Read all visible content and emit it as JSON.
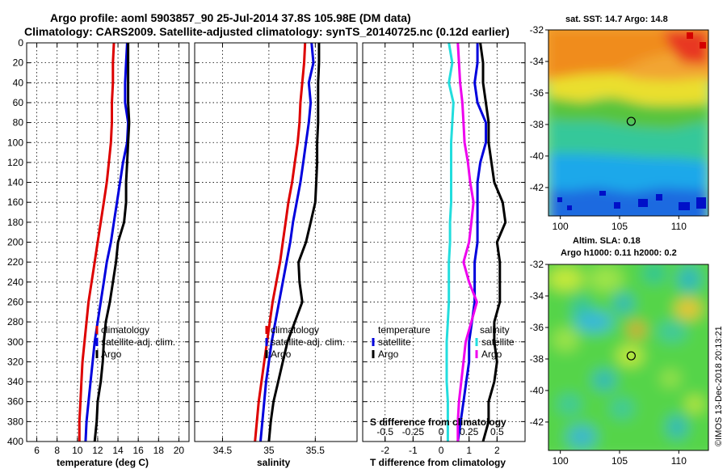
{
  "header": {
    "line1": "Argo profile: aoml 5903857_90 25-Jul-2014 37.8S 105.98E (DM data)",
    "line2": "Climatology: CARS2009. Satellite-adjusted climatology: synTS_20140725.nc (0.12d earlier)"
  },
  "chart_data": [
    {
      "type": "line",
      "name": "temperature",
      "xlabel": "temperature (deg C)",
      "xlim": [
        5,
        21
      ],
      "xticks": [
        6,
        8,
        10,
        12,
        14,
        16,
        18,
        20
      ],
      "xtick_labels": [
        "6",
        "8",
        "10",
        "12",
        "14",
        "16",
        "18",
        "20"
      ],
      "ylim": [
        0,
        400
      ],
      "yticks": [
        0,
        20,
        40,
        60,
        80,
        100,
        120,
        140,
        160,
        180,
        200,
        220,
        240,
        260,
        280,
        300,
        320,
        340,
        360,
        380,
        400
      ],
      "ytick_labels": [
        "0",
        "20",
        "40",
        "60",
        "80",
        "100",
        "120",
        "140",
        "160",
        "180",
        "200",
        "220",
        "240",
        "260",
        "280",
        "300",
        "320",
        "340",
        "360",
        "380",
        "400"
      ],
      "legend": [
        "climatology",
        "satellite-adj. clim.",
        "Argo"
      ],
      "series": [
        {
          "name": "climatology",
          "color": "#dd0000",
          "depth": [
            0,
            20,
            40,
            60,
            80,
            100,
            120,
            140,
            160,
            180,
            200,
            220,
            240,
            260,
            280,
            300,
            320,
            340,
            360,
            380,
            400
          ],
          "values": [
            13.6,
            13.5,
            13.5,
            13.4,
            13.4,
            13.3,
            13.1,
            12.9,
            12.6,
            12.3,
            12.0,
            11.7,
            11.4,
            11.1,
            10.9,
            10.7,
            10.5,
            10.4,
            10.3,
            10.2,
            10.2
          ]
        },
        {
          "name": "satellite-adj. clim.",
          "color": "#0000dd",
          "depth": [
            0,
            20,
            40,
            60,
            80,
            100,
            120,
            140,
            160,
            180,
            200,
            220,
            240,
            260,
            280,
            300,
            320,
            340,
            360,
            380,
            400
          ],
          "values": [
            14.9,
            14.8,
            14.7,
            14.7,
            15.0,
            14.9,
            14.5,
            14.2,
            13.9,
            13.6,
            13.3,
            12.9,
            12.6,
            12.3,
            12.0,
            11.7,
            11.5,
            11.3,
            11.1,
            10.9,
            10.8
          ]
        },
        {
          "name": "Argo",
          "color": "#000000",
          "depth": [
            0,
            20,
            40,
            60,
            80,
            100,
            120,
            140,
            160,
            180,
            200,
            220,
            240,
            260,
            280,
            300,
            320,
            340,
            360,
            380,
            400
          ],
          "values": [
            15.0,
            15.0,
            15.0,
            15.0,
            15.1,
            15.0,
            14.9,
            14.8,
            14.8,
            14.6,
            14.0,
            13.8,
            13.5,
            13.2,
            12.8,
            12.6,
            12.5,
            12.3,
            12.0,
            11.9,
            11.7
          ]
        }
      ]
    },
    {
      "type": "line",
      "name": "salinity",
      "xlabel": "salinity",
      "xlim": [
        34.2,
        35.95
      ],
      "xticks": [
        34.5,
        35,
        35.5
      ],
      "xtick_labels": [
        "34.5",
        "35",
        "35.5"
      ],
      "ylim": [
        0,
        400
      ],
      "legend": [
        "climatology",
        "satellite-adj. clim.",
        "Argo"
      ],
      "series": [
        {
          "name": "climatology",
          "color": "#dd0000",
          "depth": [
            0,
            20,
            40,
            60,
            80,
            100,
            120,
            140,
            160,
            180,
            200,
            220,
            240,
            260,
            280,
            300,
            320,
            340,
            360,
            380,
            400
          ],
          "values": [
            35.39,
            35.38,
            35.36,
            35.34,
            35.33,
            35.31,
            35.28,
            35.25,
            35.21,
            35.18,
            35.15,
            35.12,
            35.08,
            35.04,
            35.01,
            34.98,
            34.95,
            34.92,
            34.89,
            34.87,
            34.85
          ]
        },
        {
          "name": "satellite-adj. clim.",
          "color": "#0000dd",
          "depth": [
            0,
            20,
            40,
            60,
            80,
            100,
            120,
            140,
            160,
            180,
            200,
            220,
            240,
            260,
            280,
            300,
            320,
            340,
            360,
            380,
            400
          ],
          "values": [
            35.46,
            35.48,
            35.43,
            35.45,
            35.43,
            35.4,
            35.37,
            35.34,
            35.3,
            35.26,
            35.23,
            35.19,
            35.15,
            35.11,
            35.07,
            35.03,
            35.0,
            34.97,
            34.95,
            34.93,
            34.91
          ]
        },
        {
          "name": "Argo",
          "color": "#000000",
          "depth": [
            0,
            20,
            40,
            60,
            80,
            100,
            120,
            140,
            160,
            180,
            200,
            220,
            240,
            260,
            280,
            300,
            320,
            340,
            360,
            380,
            400
          ],
          "values": [
            35.54,
            35.54,
            35.53,
            35.53,
            35.53,
            35.52,
            35.52,
            35.51,
            35.5,
            35.45,
            35.4,
            35.32,
            35.33,
            35.36,
            35.28,
            35.2,
            35.15,
            35.1,
            35.05,
            35.02,
            35.0
          ]
        }
      ]
    },
    {
      "type": "line",
      "name": "differences",
      "xlabel": "T difference from climatology",
      "xlim": [
        -2.8,
        3.0
      ],
      "xticks": [
        -2,
        -1,
        0,
        1,
        2
      ],
      "xtick_labels": [
        "-2",
        "-1",
        "0",
        "1",
        "2"
      ],
      "inner_axis_label": "S difference from climatology",
      "inner_ticks": [
        -0.5,
        -0.25,
        0,
        0.25,
        0.5
      ],
      "inner_tick_labels": [
        "-0.5",
        "-0.25",
        "0",
        "0.25",
        "0.5"
      ],
      "ylim": [
        0,
        400
      ],
      "legend_temperature_title": "temperature",
      "legend_temperature": [
        "satellite",
        "Argo"
      ],
      "legend_salinity_title": "salinity",
      "legend_salinity": [
        "satellite",
        "Argo"
      ],
      "series": [
        {
          "name": "T satellite",
          "color": "#0000dd",
          "depth": [
            0,
            20,
            40,
            60,
            80,
            100,
            120,
            140,
            160,
            180,
            200,
            220,
            240,
            260,
            280,
            300,
            320,
            340,
            360,
            380,
            400
          ],
          "values": [
            1.3,
            1.3,
            1.2,
            1.3,
            1.6,
            1.6,
            1.4,
            1.3,
            1.3,
            1.3,
            1.3,
            1.2,
            1.2,
            1.2,
            1.1,
            1.0,
            1.0,
            0.9,
            0.8,
            0.7,
            0.6
          ]
        },
        {
          "name": "T Argo",
          "color": "#000000",
          "depth": [
            0,
            20,
            40,
            60,
            80,
            100,
            120,
            140,
            160,
            180,
            200,
            220,
            240,
            260,
            280,
            300,
            320,
            340,
            360,
            380,
            400
          ],
          "values": [
            1.4,
            1.5,
            1.5,
            1.6,
            1.7,
            1.7,
            1.8,
            1.9,
            2.2,
            2.3,
            2.0,
            2.1,
            2.1,
            2.1,
            1.9,
            1.9,
            2.0,
            1.9,
            1.7,
            1.7,
            1.5
          ]
        },
        {
          "name": "S satellite",
          "color": "#22dddd",
          "depth": [
            0,
            20,
            40,
            60,
            80,
            100,
            120,
            140,
            160,
            180,
            200,
            220,
            240,
            260,
            280,
            300,
            320,
            340,
            360,
            380,
            400
          ],
          "values": [
            0.07,
            0.1,
            0.07,
            0.11,
            0.1,
            0.09,
            0.09,
            0.09,
            0.09,
            0.08,
            0.08,
            0.07,
            0.07,
            0.07,
            0.06,
            0.05,
            0.05,
            0.05,
            0.06,
            0.06,
            0.06
          ]
        },
        {
          "name": "S Argo",
          "color": "#ee00ee",
          "depth": [
            0,
            20,
            40,
            60,
            80,
            100,
            120,
            140,
            160,
            180,
            200,
            220,
            240,
            260,
            280,
            300,
            320,
            340,
            360,
            380,
            400
          ],
          "values": [
            0.15,
            0.16,
            0.17,
            0.19,
            0.2,
            0.21,
            0.24,
            0.26,
            0.29,
            0.27,
            0.25,
            0.2,
            0.25,
            0.32,
            0.27,
            0.22,
            0.2,
            0.18,
            0.16,
            0.15,
            0.15
          ]
        }
      ]
    },
    {
      "type": "heatmap",
      "name": "sst-map",
      "title": "sat. SST: 14.7 Argo: 14.8",
      "xlim": [
        99,
        112.5
      ],
      "xticks": [
        100,
        105,
        110
      ],
      "xtick_labels": [
        "100",
        "105",
        "110"
      ],
      "ylim": [
        -43.8,
        -32
      ],
      "yticks": [
        -32,
        -34,
        -36,
        -38,
        -40,
        -42
      ],
      "ytick_labels": [
        "-32",
        "-34",
        "-36",
        "-38",
        "-40",
        "-42"
      ],
      "marker": {
        "lon": 105.98,
        "lat": -37.8
      }
    },
    {
      "type": "heatmap",
      "name": "sla-map",
      "title": "Altim. SLA: 0.18",
      "subtitle": "Argo h1000: 0.11 h2000: 0.2",
      "xlim": [
        99,
        112.5
      ],
      "xticks": [
        100,
        105,
        110
      ],
      "xtick_labels": [
        "100",
        "105",
        "110"
      ],
      "ylim": [
        -43.8,
        -32
      ],
      "yticks": [
        -32,
        -34,
        -36,
        -38,
        -40,
        -42
      ],
      "ytick_labels": [
        "-32",
        "-34",
        "-36",
        "-38",
        "-40",
        "-42"
      ],
      "marker": {
        "lon": 105.98,
        "lat": -37.8
      }
    }
  ],
  "watermark": "©IMOS 13-Dec-2018 20:13:21"
}
